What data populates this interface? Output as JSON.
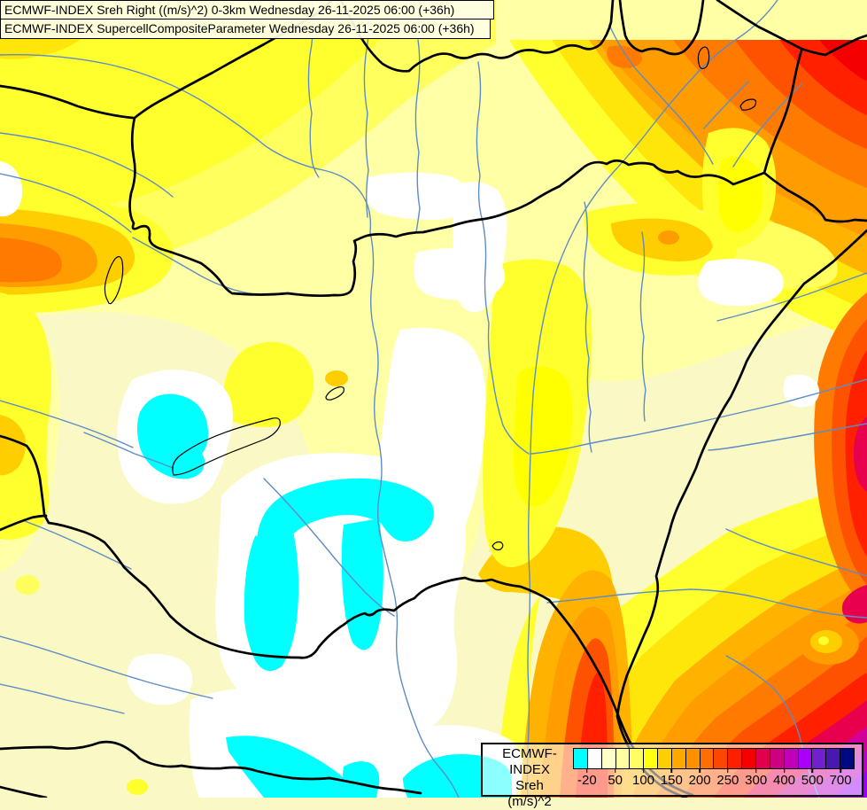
{
  "titles": {
    "line1": "ECMWF-INDEX Sreh Right ((m/s)^2) 0-3km Wednesday 26-11-2025 06:00 (+36h)",
    "line2": "ECMWF-INDEX SupercellCompositeParameter Wednesday 26-11-2025 06:00 (+36h)"
  },
  "legend": {
    "title": "ECMWF-INDEX",
    "parameter": "Sreh",
    "units": "(m/s)^2",
    "tick_labels": [
      "-20",
      "50",
      "100",
      "150",
      "200",
      "250",
      "300",
      "400",
      "500",
      "700"
    ],
    "colors": [
      "#00FFFF",
      "#FFFFFF",
      "#FFFFC8",
      "#FFFFA0",
      "#FFFF64",
      "#FFFF0F",
      "#FFCE00",
      "#FFA800",
      "#FF9100",
      "#FF6E00",
      "#FF4600",
      "#FF1E00",
      "#F50000",
      "#E0004E",
      "#CC0080",
      "#C000B8",
      "#AA00FA",
      "#7020CC",
      "#4818B0",
      "#000883"
    ]
  },
  "palette": {
    "cream": "#FAF9C5",
    "pale": "#FFFFA6",
    "yellow": "#FFFF5E",
    "yellowBright": "#FFFF2E",
    "yellowCore": "#FFFF00",
    "yellowGold": "#FFE60A",
    "gold": "#FFCE00",
    "amber": "#FFB300",
    "orange": "#FF9C00",
    "orangeDeep": "#FF7A00",
    "redOrange": "#FF5200",
    "red": "#FF2000",
    "red2": "#F50000",
    "crimson": "#E8004F",
    "magenta": "#D2009A",
    "purple": "#BC00CC",
    "violet": "#9C00FA",
    "white": "#FFFFFF",
    "cyan": "#00FFFF",
    "river": "#5E8CC6",
    "line": "#000000"
  }
}
